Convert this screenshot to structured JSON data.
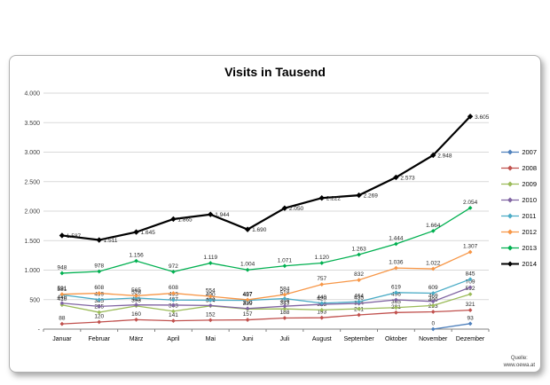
{
  "source": {
    "line1": "Quelle:",
    "line2": "www.oewa.at"
  },
  "chart_data": {
    "type": "line",
    "title": "Visits in Tausend",
    "xlabel": "",
    "ylabel": "",
    "grid": true,
    "legend_position": "right",
    "ylim": [
      0,
      4000
    ],
    "ytick_step": 500,
    "ytick_labels": [
      "-",
      "500",
      "1.000",
      "1.500",
      "2.000",
      "2.500",
      "3.000",
      "3.500",
      "4.000"
    ],
    "categories": [
      "Januar",
      "Februar",
      "März",
      "April",
      "Mai",
      "Juni",
      "Juli",
      "August",
      "September",
      "Oktober",
      "November",
      "Dezember"
    ],
    "series": [
      {
        "name": "2007",
        "color": "#4F81BD",
        "label_pos": "above",
        "thick": false,
        "values": [
          null,
          null,
          null,
          null,
          null,
          null,
          null,
          null,
          null,
          null,
          0,
          93
        ]
      },
      {
        "name": "2008",
        "color": "#C0504D",
        "label_pos": "above",
        "thick": false,
        "values": [
          88,
          120,
          160,
          141,
          152,
          157,
          188,
          193,
          241,
          281,
          293,
          321
        ]
      },
      {
        "name": "2009",
        "color": "#9BBB59",
        "label_pos": "above",
        "thick": false,
        "values": [
          410,
          285,
          393,
          303,
          394,
          339,
          343,
          325,
          344,
          365,
          400,
          592
        ]
      },
      {
        "name": "2010",
        "color": "#8064A2",
        "label_pos": "above",
        "thick": false,
        "values": [
          440,
          385,
          411,
          407,
          400,
          350,
          388,
          420,
          435,
          496,
          469,
          709
        ]
      },
      {
        "name": "2011",
        "color": "#4BACC6",
        "label_pos": "above",
        "thick": false,
        "values": [
          581,
          499,
          528,
          493,
          490,
          487,
          518,
          440,
          464,
          619,
          609,
          845
        ]
      },
      {
        "name": "2012",
        "color": "#F79646",
        "label_pos": "above",
        "thick": false,
        "values": [
          591,
          608,
          565,
          608,
          554,
          497,
          584,
          757,
          832,
          1036,
          1022,
          1307
        ]
      },
      {
        "name": "2013",
        "color": "#00B050",
        "label_pos": "above",
        "thick": false,
        "values": [
          948,
          978,
          1156,
          972,
          1119,
          1004,
          1071,
          1120,
          1263,
          1444,
          1664,
          2054
        ]
      },
      {
        "name": "2014",
        "color": "#000000",
        "label_pos": "right",
        "thick": true,
        "values": [
          1587,
          1511,
          1645,
          1865,
          1944,
          1690,
          2050,
          2222,
          2269,
          2573,
          2948,
          3605
        ]
      }
    ]
  }
}
